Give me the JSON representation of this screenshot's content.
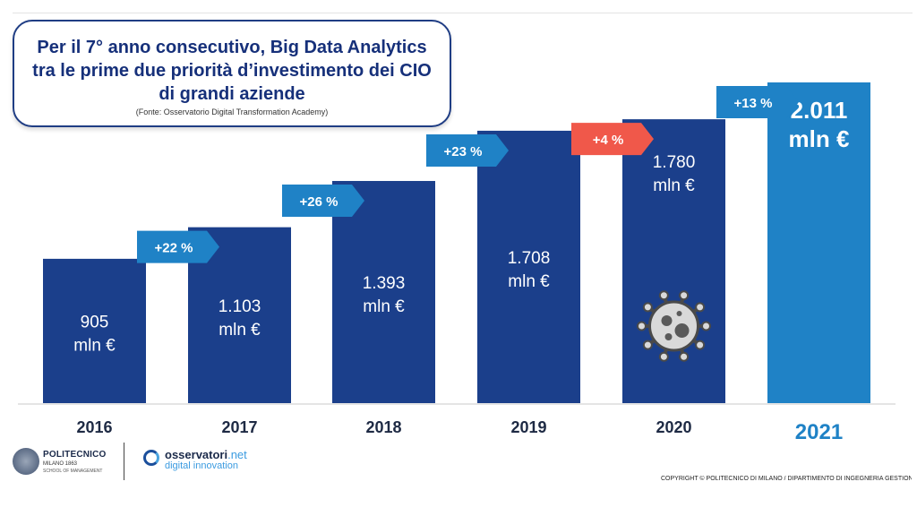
{
  "header": {
    "title": "Per il 7° anno consecutivo, Big Data Analytics\ntra le prime due priorità d’investimento dei CIO\ndi grandi aziende",
    "source": "(Fonte: Osservatorio Digital Transformation Academy)"
  },
  "chart_data": {
    "type": "bar",
    "title": "Per il 7° anno consecutivo, Big Data Analytics tra le prime due priorità d’investimento dei CIO di grandi aziende",
    "xlabel": "",
    "ylabel": "",
    "unit": "mln €",
    "categories": [
      "2016",
      "2017",
      "2018",
      "2019",
      "2020",
      "2021"
    ],
    "values": [
      905,
      1103,
      1393,
      1708,
      1780,
      2011
    ],
    "value_labels": [
      "905",
      "1.103",
      "1.393",
      "1.708",
      "1.780",
      "2.011"
    ],
    "growth_labels": [
      "+22 %",
      "+26 %",
      "+23 %",
      "+4 %",
      "+13 %"
    ],
    "growth_negative_highlight": [
      false,
      false,
      false,
      true,
      false
    ],
    "ylim": [
      0,
      2011
    ],
    "colors": {
      "bar": "#1b3f8b",
      "bar_highlight": "#1f82c6",
      "arrow": "#1f82c6",
      "arrow_alert": "#f0584a",
      "year_highlight": "#1f82c6"
    }
  },
  "footer": {
    "polimi_name": "POLITECNICO",
    "polimi_sub": "MILANO 1863",
    "polimi_school": "SCHOOL OF MANAGEMENT",
    "osserv_name": "osservatori",
    "osserv_net": ".net",
    "osserv_sub": "digital innovation",
    "copyright": "COPYRIGHT © POLITECNICO DI MILANO / DIPARTIMENTO DI INGEGNERIA GESTIONALE"
  },
  "icons": {
    "virus": "virus-icon"
  }
}
